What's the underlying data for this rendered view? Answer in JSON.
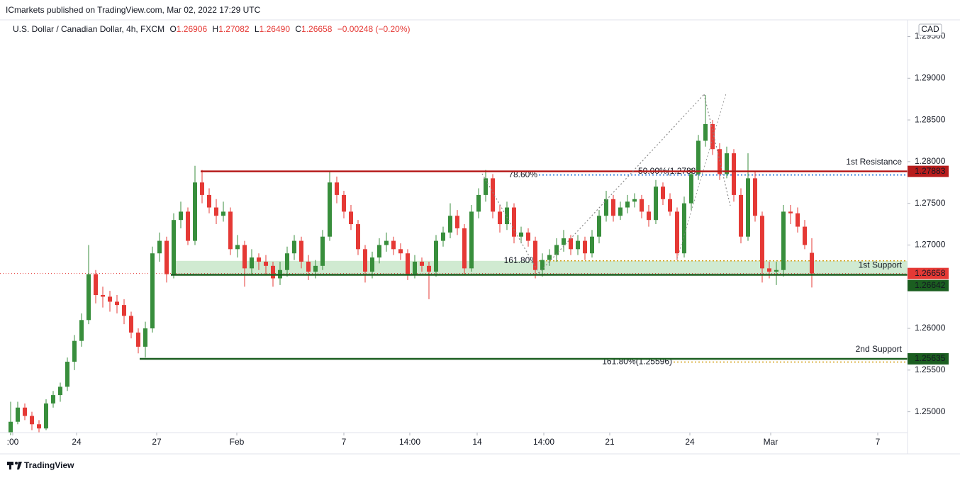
{
  "header": "ICmarkets published on TradingView.com, Mar 02, 2022 17:29 UTC",
  "footer": "TradingView",
  "chart_data": {
    "type": "candlestick",
    "symbol": "U.S. Dollar / Canadian Dollar, 4h, FXCM",
    "legend": {
      "o": "O",
      "open": "1.26906",
      "h": "H",
      "high": "1.27082",
      "l": "L",
      "low": "1.26490",
      "c": "C",
      "close": "1.26658",
      "change": "−0.00248 (−0.20%)"
    },
    "currency": "CAD",
    "up_color": "#388e3c",
    "down_color": "#e53935",
    "xlim": [
      -1.5,
      126.5
    ],
    "xticks": [
      {
        "value": 0.3,
        "label": ":00"
      },
      {
        "value": 9.3,
        "label": "24"
      },
      {
        "value": 20.6,
        "label": "27"
      },
      {
        "value": 31.9,
        "label": "Feb"
      },
      {
        "value": 47,
        "label": "7"
      },
      {
        "value": 56.3,
        "label": "14:00"
      },
      {
        "value": 65.8,
        "label": "14"
      },
      {
        "value": 75.2,
        "label": "14:00"
      },
      {
        "value": 84.5,
        "label": "21"
      },
      {
        "value": 95.8,
        "label": "24"
      },
      {
        "value": 107.2,
        "label": "Mar"
      },
      {
        "value": 122.3,
        "label": "7"
      }
    ],
    "ylim": [
      1.2475,
      1.297
    ],
    "yticks": [
      {
        "value": 1.295,
        "label": "1.29500"
      },
      {
        "value": 1.29,
        "label": "1.29000"
      },
      {
        "value": 1.285,
        "label": "1.28500"
      },
      {
        "value": 1.28,
        "label": "1.28000"
      },
      {
        "value": 1.275,
        "label": "1.27500"
      },
      {
        "value": 1.27,
        "label": "1.27000"
      },
      {
        "value": 1.265,
        "label": "1.26500"
      },
      {
        "value": 1.26,
        "label": "1.26000"
      },
      {
        "value": 1.255,
        "label": "1.25500"
      },
      {
        "value": 1.25,
        "label": "1.25000"
      }
    ],
    "candles": [
      [
        1.2475,
        1.2512,
        1.2472,
        1.2488
      ],
      [
        1.2488,
        1.2512,
        1.2485,
        1.2505
      ],
      [
        1.2505,
        1.251,
        1.249,
        1.2495
      ],
      [
        1.2495,
        1.25,
        1.2478,
        1.2485
      ],
      [
        1.2485,
        1.249,
        1.2475,
        1.248
      ],
      [
        1.248,
        1.2515,
        1.2478,
        1.251
      ],
      [
        1.251,
        1.2525,
        1.2505,
        1.252
      ],
      [
        1.252,
        1.2535,
        1.2512,
        1.253
      ],
      [
        1.253,
        1.2565,
        1.2525,
        1.256
      ],
      [
        1.256,
        1.2592,
        1.255,
        1.2585
      ],
      [
        1.2585,
        1.2618,
        1.2578,
        1.261
      ],
      [
        1.261,
        1.27,
        1.2605,
        1.2665
      ],
      [
        1.2665,
        1.267,
        1.263,
        1.264
      ],
      [
        1.264,
        1.265,
        1.2625,
        1.2638
      ],
      [
        1.2638,
        1.2645,
        1.262,
        1.2632
      ],
      [
        1.2632,
        1.264,
        1.2618,
        1.2628
      ],
      [
        1.2628,
        1.2635,
        1.2605,
        1.2615
      ],
      [
        1.2615,
        1.262,
        1.2588,
        1.2595
      ],
      [
        1.2595,
        1.26,
        1.257,
        1.2578
      ],
      [
        1.2578,
        1.2608,
        1.2565,
        1.26
      ],
      [
        1.26,
        1.2698,
        1.2595,
        1.269
      ],
      [
        1.269,
        1.2715,
        1.268,
        1.2705
      ],
      [
        1.2705,
        1.271,
        1.2655,
        1.2665
      ],
      [
        1.2665,
        1.2738,
        1.266,
        1.273
      ],
      [
        1.273,
        1.2752,
        1.272,
        1.274
      ],
      [
        1.274,
        1.2745,
        1.27,
        1.2705
      ],
      [
        1.2705,
        1.2795,
        1.27,
        1.2775
      ],
      [
        1.2775,
        1.279,
        1.275,
        1.276
      ],
      [
        1.276,
        1.2768,
        1.2738,
        1.2745
      ],
      [
        1.2745,
        1.2755,
        1.2725,
        1.2735
      ],
      [
        1.2735,
        1.2752,
        1.2728,
        1.274
      ],
      [
        1.274,
        1.2745,
        1.2688,
        1.2695
      ],
      [
        1.2695,
        1.2712,
        1.2685,
        1.27
      ],
      [
        1.27,
        1.2705,
        1.265,
        1.2672
      ],
      [
        1.2672,
        1.2695,
        1.2665,
        1.2685
      ],
      [
        1.2685,
        1.269,
        1.267,
        1.268
      ],
      [
        1.268,
        1.2688,
        1.2665,
        1.2675
      ],
      [
        1.2675,
        1.268,
        1.265,
        1.266
      ],
      [
        1.266,
        1.268,
        1.2652,
        1.267
      ],
      [
        1.267,
        1.2698,
        1.2662,
        1.269
      ],
      [
        1.269,
        1.2712,
        1.2682,
        1.2705
      ],
      [
        1.2705,
        1.271,
        1.2672,
        1.268
      ],
      [
        1.268,
        1.2688,
        1.2658,
        1.2668
      ],
      [
        1.2668,
        1.2682,
        1.266,
        1.2675
      ],
      [
        1.2675,
        1.2718,
        1.267,
        1.271
      ],
      [
        1.271,
        1.2788,
        1.2705,
        1.2775
      ],
      [
        1.2775,
        1.2782,
        1.275,
        1.276
      ],
      [
        1.276,
        1.2765,
        1.2732,
        1.274
      ],
      [
        1.274,
        1.2748,
        1.2718,
        1.2725
      ],
      [
        1.2725,
        1.273,
        1.2688,
        1.2695
      ],
      [
        1.2695,
        1.27,
        1.2655,
        1.2668
      ],
      [
        1.2668,
        1.2692,
        1.266,
        1.2685
      ],
      [
        1.2685,
        1.2708,
        1.2678,
        1.27
      ],
      [
        1.27,
        1.2715,
        1.2692,
        1.2705
      ],
      [
        1.2705,
        1.271,
        1.2688,
        1.2695
      ],
      [
        1.2695,
        1.2702,
        1.2682,
        1.269
      ],
      [
        1.269,
        1.2695,
        1.2658,
        1.2665
      ],
      [
        1.2665,
        1.2688,
        1.266,
        1.268
      ],
      [
        1.268,
        1.2685,
        1.2668,
        1.2675
      ],
      [
        1.2675,
        1.268,
        1.2635,
        1.2668
      ],
      [
        1.2668,
        1.2712,
        1.2662,
        1.2705
      ],
      [
        1.2705,
        1.2722,
        1.2698,
        1.2715
      ],
      [
        1.2715,
        1.275,
        1.2708,
        1.2735
      ],
      [
        1.2735,
        1.2742,
        1.2712,
        1.272
      ],
      [
        1.272,
        1.2725,
        1.2665,
        1.2672
      ],
      [
        1.2672,
        1.2748,
        1.2668,
        1.274
      ],
      [
        1.274,
        1.2768,
        1.2732,
        1.276
      ],
      [
        1.276,
        1.279,
        1.2752,
        1.278
      ],
      [
        1.278,
        1.2785,
        1.2732,
        1.274
      ],
      [
        1.274,
        1.2748,
        1.2715,
        1.2725
      ],
      [
        1.2725,
        1.2752,
        1.2718,
        1.2745
      ],
      [
        1.2745,
        1.275,
        1.2702,
        1.271
      ],
      [
        1.271,
        1.2722,
        1.2702,
        1.2715
      ],
      [
        1.2715,
        1.272,
        1.2698,
        1.2705
      ],
      [
        1.2705,
        1.271,
        1.266,
        1.267
      ],
      [
        1.267,
        1.269,
        1.2662,
        1.2682
      ],
      [
        1.2682,
        1.2695,
        1.2675,
        1.2688
      ],
      [
        1.2688,
        1.2708,
        1.268,
        1.27
      ],
      [
        1.27,
        1.2718,
        1.2692,
        1.2708
      ],
      [
        1.2708,
        1.2712,
        1.2688,
        1.2695
      ],
      [
        1.2695,
        1.2712,
        1.2688,
        1.2705
      ],
      [
        1.2705,
        1.271,
        1.2682,
        1.269
      ],
      [
        1.269,
        1.2718,
        1.2685,
        1.271
      ],
      [
        1.271,
        1.2742,
        1.2702,
        1.2735
      ],
      [
        1.2735,
        1.2765,
        1.2728,
        1.2755
      ],
      [
        1.2755,
        1.276,
        1.2728,
        1.2735
      ],
      [
        1.2735,
        1.2752,
        1.273,
        1.2745
      ],
      [
        1.2745,
        1.276,
        1.2738,
        1.2752
      ],
      [
        1.2752,
        1.2762,
        1.2745,
        1.2755
      ],
      [
        1.2755,
        1.276,
        1.2732,
        1.274
      ],
      [
        1.274,
        1.2748,
        1.2722,
        1.273
      ],
      [
        1.273,
        1.2778,
        1.2725,
        1.277
      ],
      [
        1.277,
        1.2775,
        1.2748,
        1.2755
      ],
      [
        1.2755,
        1.2762,
        1.2735,
        1.274
      ],
      [
        1.274,
        1.2745,
        1.2682,
        1.269
      ],
      [
        1.269,
        1.2758,
        1.2685,
        1.275
      ],
      [
        1.275,
        1.2792,
        1.2742,
        1.2785
      ],
      [
        1.2785,
        1.2832,
        1.2778,
        1.2825
      ],
      [
        1.2825,
        1.288,
        1.2818,
        1.2845
      ],
      [
        1.2845,
        1.285,
        1.2808,
        1.2815
      ],
      [
        1.2815,
        1.2822,
        1.2778,
        1.2785
      ],
      [
        1.2785,
        1.2818,
        1.278,
        1.281
      ],
      [
        1.281,
        1.2815,
        1.2752,
        1.276
      ],
      [
        1.276,
        1.2768,
        1.2702,
        1.271
      ],
      [
        1.271,
        1.281,
        1.2705,
        1.278
      ],
      [
        1.278,
        1.2788,
        1.2728,
        1.2735
      ],
      [
        1.2735,
        1.274,
        1.2655,
        1.2672
      ],
      [
        1.2672,
        1.268,
        1.266,
        1.2668
      ],
      [
        1.2668,
        1.268,
        1.2652,
        1.267
      ],
      [
        1.267,
        1.2748,
        1.2662,
        1.274
      ],
      [
        1.274,
        1.2748,
        1.2725,
        1.2738
      ],
      [
        1.2738,
        1.2745,
        1.2715,
        1.2722
      ],
      [
        1.2722,
        1.273,
        1.2695,
        1.27
      ],
      [
        1.26906,
        1.27082,
        1.2649,
        1.26658
      ]
    ],
    "zone": {
      "from": 1.26642,
      "to": 1.2681,
      "start": 22.9,
      "color": "#c8e6c9"
    },
    "levels": [
      {
        "name": "1st Resistance",
        "value": 1.27883,
        "label": "1.27883",
        "start": 26.8,
        "color": "#b71c1c"
      },
      {
        "name": "1st Support",
        "value": 1.26642,
        "label": "1.26642",
        "start": 22.6,
        "color": "#1b5e20"
      },
      {
        "name": "2nd Support",
        "value": 1.25635,
        "label": "1.25635",
        "start": 18.2,
        "color": "#1b5e20"
      }
    ],
    "fib_lines": [
      {
        "label": "78.60%",
        "value": 1.2784,
        "start": 74.5,
        "color": "#1e6fd9"
      },
      {
        "label": "161.80%",
        "value": 1.2681,
        "start": 74.5,
        "color": "#d4a017"
      },
      {
        "label": "161.80%(1.25596)",
        "value": 1.25596,
        "start": 93.5,
        "color": "#d4a017"
      }
    ],
    "fib_notes": [
      {
        "label": "50.00%(1.2788)",
        "value": 1.2788,
        "at": 88.5,
        "color": "#1e6fd9"
      }
    ],
    "last_price": {
      "value": 1.26658,
      "label": "1.26658",
      "color": "#e53935"
    }
  }
}
